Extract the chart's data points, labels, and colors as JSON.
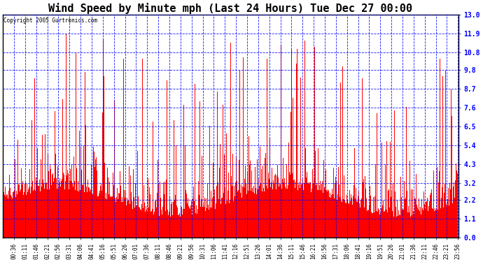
{
  "title": "Wind Speed by Minute mph (Last 24 Hours) Tue Dec 27 00:00",
  "copyright": "Copyright 2005 Gurtronics.com",
  "yticks": [
    0.0,
    1.1,
    2.2,
    3.2,
    4.3,
    5.4,
    6.5,
    7.6,
    8.7,
    9.8,
    10.8,
    11.9,
    13.0
  ],
  "ymin": 0.0,
  "ymax": 13.0,
  "bar_color": "#FF0000",
  "background_color": "#FFFFFF",
  "grid_color": "#0000FF",
  "title_fontsize": 11,
  "tick_label_fontsize": 7,
  "n_minutes": 1440,
  "x_tick_labels": [
    "00:36",
    "01:11",
    "01:46",
    "02:21",
    "02:56",
    "03:31",
    "04:06",
    "04:41",
    "05:16",
    "05:51",
    "06:26",
    "07:01",
    "07:36",
    "08:11",
    "08:46",
    "09:21",
    "09:56",
    "10:31",
    "11:06",
    "11:41",
    "12:16",
    "12:51",
    "13:26",
    "14:01",
    "14:36",
    "15:11",
    "15:46",
    "16:21",
    "16:56",
    "17:31",
    "18:06",
    "18:41",
    "19:16",
    "19:51",
    "20:26",
    "21:01",
    "21:36",
    "22:11",
    "22:46",
    "23:21",
    "23:56"
  ],
  "figwidth": 6.9,
  "figheight": 3.75,
  "dpi": 100
}
